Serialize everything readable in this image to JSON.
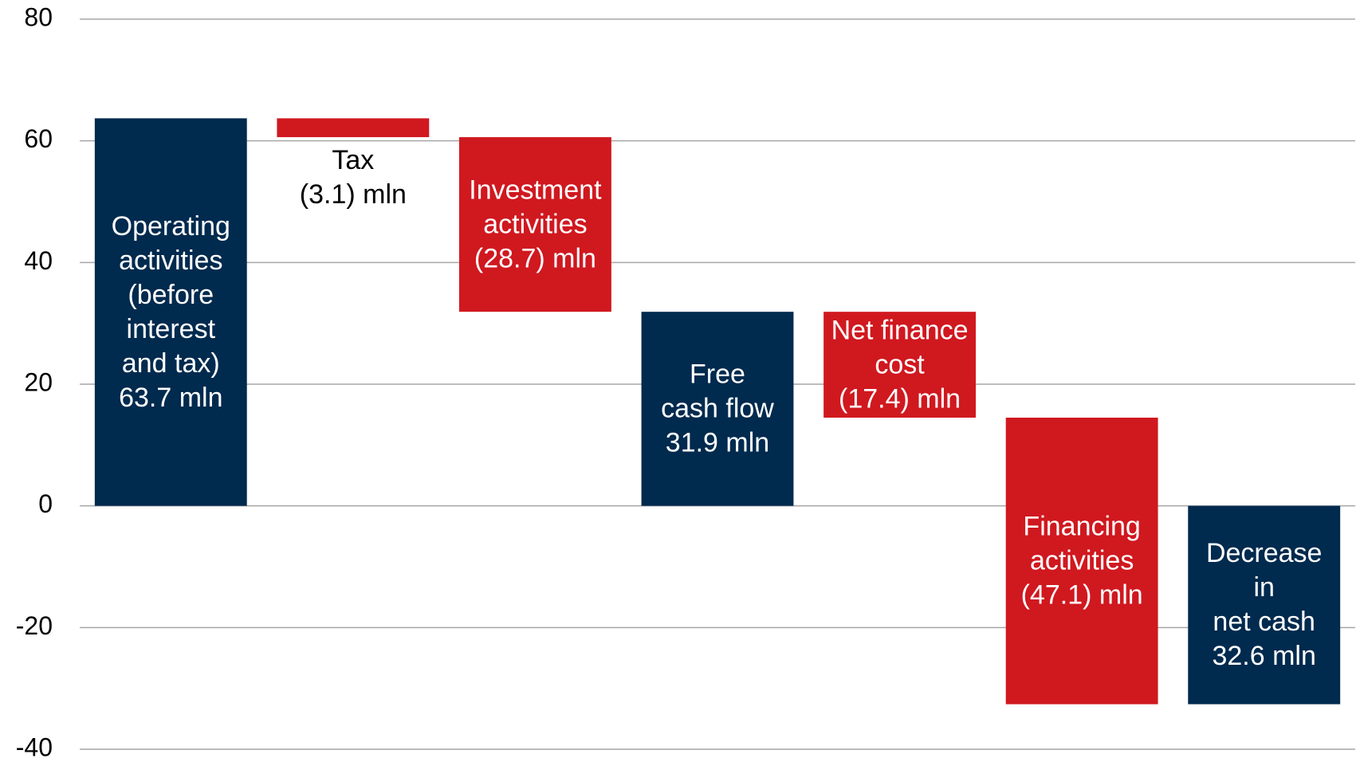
{
  "chart_data": {
    "type": "waterfall",
    "categories": [
      "Operating\nactivities\n(before\ninterest\nand tax)",
      "Tax",
      "Investment\nactivities",
      "Free\ncash flow",
      "Net finance\ncost",
      "Financing\nactivities",
      "Decrease\nin\nnet cash"
    ],
    "values": [
      63.7,
      -3.1,
      -28.7,
      31.9,
      -17.4,
      -47.1,
      -32.6
    ],
    "value_labels": [
      "63.7 mln",
      "(3.1) mln",
      "(28.7) mln",
      "31.9 mln",
      "(17.4) mln",
      "(47.1) mln",
      "32.6 mln"
    ],
    "measure": [
      "absolute",
      "relative",
      "relative",
      "absolute",
      "relative",
      "relative",
      "absolute"
    ],
    "colors": {
      "absolute": "#002a4e",
      "relative": "#d0181f"
    },
    "ylim": [
      -40,
      80
    ],
    "yticks": [
      -40,
      -20,
      0,
      20,
      40,
      60,
      80
    ],
    "grid": true
  }
}
